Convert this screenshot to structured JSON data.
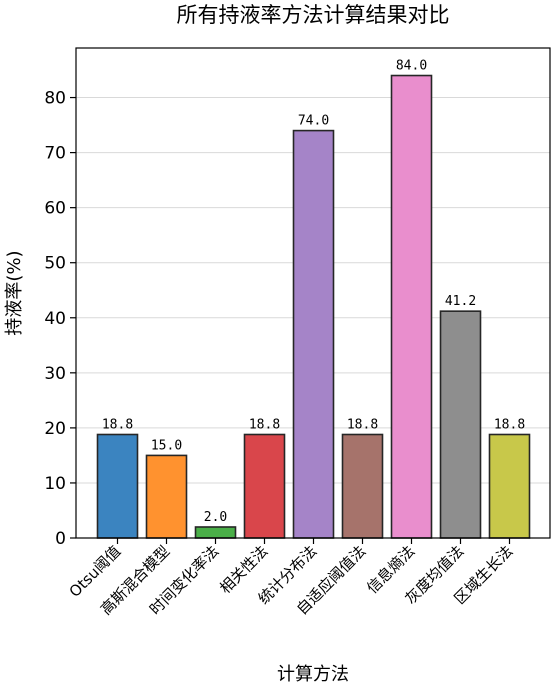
{
  "chart_data": {
    "type": "bar",
    "title": "所有持液率方法计算结果对比",
    "xlabel": "计算方法",
    "ylabel": "持液率(%)",
    "ylim": [
      0,
      89
    ],
    "yticks": [
      0,
      10,
      20,
      30,
      40,
      50,
      60,
      70,
      80
    ],
    "grid": "y",
    "categories": [
      "Otsu阈值",
      "高斯混合模型",
      "时间变化率法",
      "相关性法",
      "统计分布法",
      "自适应阈值法",
      "信息熵法",
      "灰度均值法",
      "区域生长法"
    ],
    "values": [
      18.8,
      15.0,
      2.0,
      18.8,
      74.0,
      18.8,
      84.0,
      41.2,
      18.8
    ],
    "value_labels": [
      "18.8",
      "15.0",
      "2.0",
      "18.8",
      "74.0",
      "18.8",
      "84.0",
      "41.2",
      "18.8"
    ],
    "colors": [
      "#3b84c0",
      "#ff922f",
      "#4aaf48",
      "#d9464b",
      "#a584c8",
      "#a6736b",
      "#e98ecd",
      "#8e8e8e",
      "#c8c84a"
    ]
  }
}
